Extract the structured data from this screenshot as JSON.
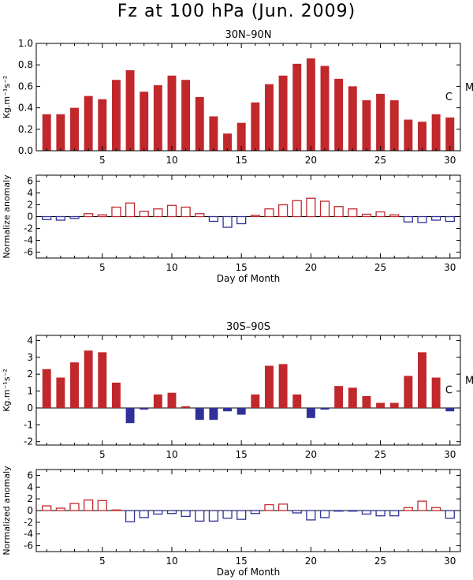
{
  "figure": {
    "title": "Fz at 100 hPa (Jun. 2009)"
  },
  "chart_data": [
    {
      "type": "bar",
      "title": "30N–90N",
      "ylabel": "Kg.m⁻¹s⁻²",
      "xlabel": "",
      "x": [
        1,
        2,
        3,
        4,
        5,
        6,
        7,
        8,
        9,
        10,
        11,
        12,
        13,
        14,
        15,
        16,
        17,
        18,
        19,
        20,
        21,
        22,
        23,
        24,
        25,
        26,
        27,
        28,
        29,
        30
      ],
      "values": [
        0.34,
        0.34,
        0.4,
        0.51,
        0.48,
        0.66,
        0.75,
        0.55,
        0.61,
        0.7,
        0.66,
        0.5,
        0.32,
        0.16,
        0.26,
        0.45,
        0.62,
        0.7,
        0.81,
        0.86,
        0.79,
        0.67,
        0.6,
        0.47,
        0.53,
        0.47,
        0.29,
        0.27,
        0.34,
        0.31
      ],
      "ylim": [
        0,
        1.0
      ],
      "yticks": [
        0.0,
        0.2,
        0.4,
        0.6,
        0.8,
        1.0
      ],
      "yticklabels": [
        "0.0",
        "0.2",
        "0.4",
        "0.6",
        "0.8",
        "1.0"
      ],
      "xticks": [
        5,
        10,
        15,
        20,
        25,
        30
      ],
      "xticklabels": [
        "5",
        "10",
        "15",
        "20",
        "25",
        "30"
      ],
      "annotations": [
        "C",
        "M"
      ],
      "fill": true,
      "pos_color": "#c0282c",
      "neg_color": "#303099"
    },
    {
      "type": "bar",
      "title": "",
      "ylabel": "Normalize anomaly",
      "xlabel": "Day of Month",
      "x": [
        1,
        2,
        3,
        4,
        5,
        6,
        7,
        8,
        9,
        10,
        11,
        12,
        13,
        14,
        15,
        16,
        17,
        18,
        19,
        20,
        21,
        22,
        23,
        24,
        25,
        26,
        27,
        28,
        29,
        30
      ],
      "values": [
        -0.5,
        -0.6,
        -0.3,
        0.5,
        0.3,
        1.6,
        2.3,
        0.9,
        1.3,
        1.9,
        1.6,
        0.5,
        -0.8,
        -1.8,
        -1.2,
        0.2,
        1.3,
        2.0,
        2.7,
        3.1,
        2.6,
        1.7,
        1.3,
        0.4,
        0.8,
        0.3,
        -0.9,
        -1.0,
        -0.6,
        -0.8
      ],
      "ylim": [
        -7,
        7
      ],
      "yticks": [
        -6,
        -4,
        -2,
        0,
        2,
        4,
        6
      ],
      "yticklabels": [
        "-6",
        "-4",
        "-2",
        "0",
        "2",
        "4",
        "6"
      ],
      "xticks": [
        5,
        10,
        15,
        20,
        25,
        30
      ],
      "xticklabels": [
        "5",
        "10",
        "15",
        "20",
        "25",
        "30"
      ],
      "fill": false,
      "pos_color": "#c0282c",
      "neg_color": "#303099"
    },
    {
      "type": "bar",
      "title": "30S–90S",
      "ylabel": "Kg.m⁻¹s⁻²",
      "xlabel": "",
      "x": [
        1,
        2,
        3,
        4,
        5,
        6,
        7,
        8,
        9,
        10,
        11,
        12,
        13,
        14,
        15,
        16,
        17,
        18,
        19,
        20,
        21,
        22,
        23,
        24,
        25,
        26,
        27,
        28,
        29,
        30
      ],
      "values": [
        2.3,
        1.8,
        2.7,
        3.4,
        3.3,
        1.5,
        -0.9,
        -0.1,
        0.8,
        0.9,
        0.1,
        -0.7,
        -0.7,
        -0.2,
        -0.4,
        0.8,
        2.5,
        2.6,
        0.8,
        -0.6,
        -0.1,
        1.3,
        1.2,
        0.7,
        0.3,
        0.3,
        1.9,
        3.3,
        1.8,
        -0.2
      ],
      "ylim": [
        -2.2,
        4.3
      ],
      "yticks": [
        -2,
        -1,
        0,
        1,
        2,
        3,
        4
      ],
      "yticklabels": [
        "-2",
        "-1",
        "0",
        "1",
        "2",
        "3",
        "4"
      ],
      "xticks": [
        5,
        10,
        15,
        20,
        25,
        30
      ],
      "xticklabels": [
        "5",
        "10",
        "15",
        "20",
        "25",
        "30"
      ],
      "annotations": [
        "C",
        "M"
      ],
      "fill": true,
      "pos_color": "#c0282c",
      "neg_color": "#303099"
    },
    {
      "type": "bar",
      "title": "",
      "ylabel": "Normalized anomaly",
      "xlabel": "Day of Month",
      "x": [
        1,
        2,
        3,
        4,
        5,
        6,
        7,
        8,
        9,
        10,
        11,
        12,
        13,
        14,
        15,
        16,
        17,
        18,
        19,
        20,
        21,
        22,
        23,
        24,
        25,
        26,
        27,
        28,
        29,
        30
      ],
      "values": [
        0.8,
        0.4,
        1.2,
        1.8,
        1.7,
        0.1,
        -1.9,
        -1.2,
        -0.6,
        -0.5,
        -1.0,
        -1.8,
        -1.8,
        -1.3,
        -1.5,
        -0.5,
        1.0,
        1.1,
        -0.4,
        -1.6,
        -1.2,
        -0.1,
        -0.1,
        -0.6,
        -0.9,
        -0.9,
        0.5,
        1.6,
        0.5,
        -1.3
      ],
      "ylim": [
        -7,
        7
      ],
      "yticks": [
        -6,
        -4,
        -2,
        0,
        2,
        4,
        6
      ],
      "yticklabels": [
        "-6",
        "-4",
        "-2",
        "0",
        "2",
        "4",
        "6"
      ],
      "xticks": [
        5,
        10,
        15,
        20,
        25,
        30
      ],
      "xticklabels": [
        "5",
        "10",
        "15",
        "20",
        "25",
        "30"
      ],
      "fill": false,
      "pos_color": "#c0282c",
      "neg_color": "#303099"
    }
  ]
}
